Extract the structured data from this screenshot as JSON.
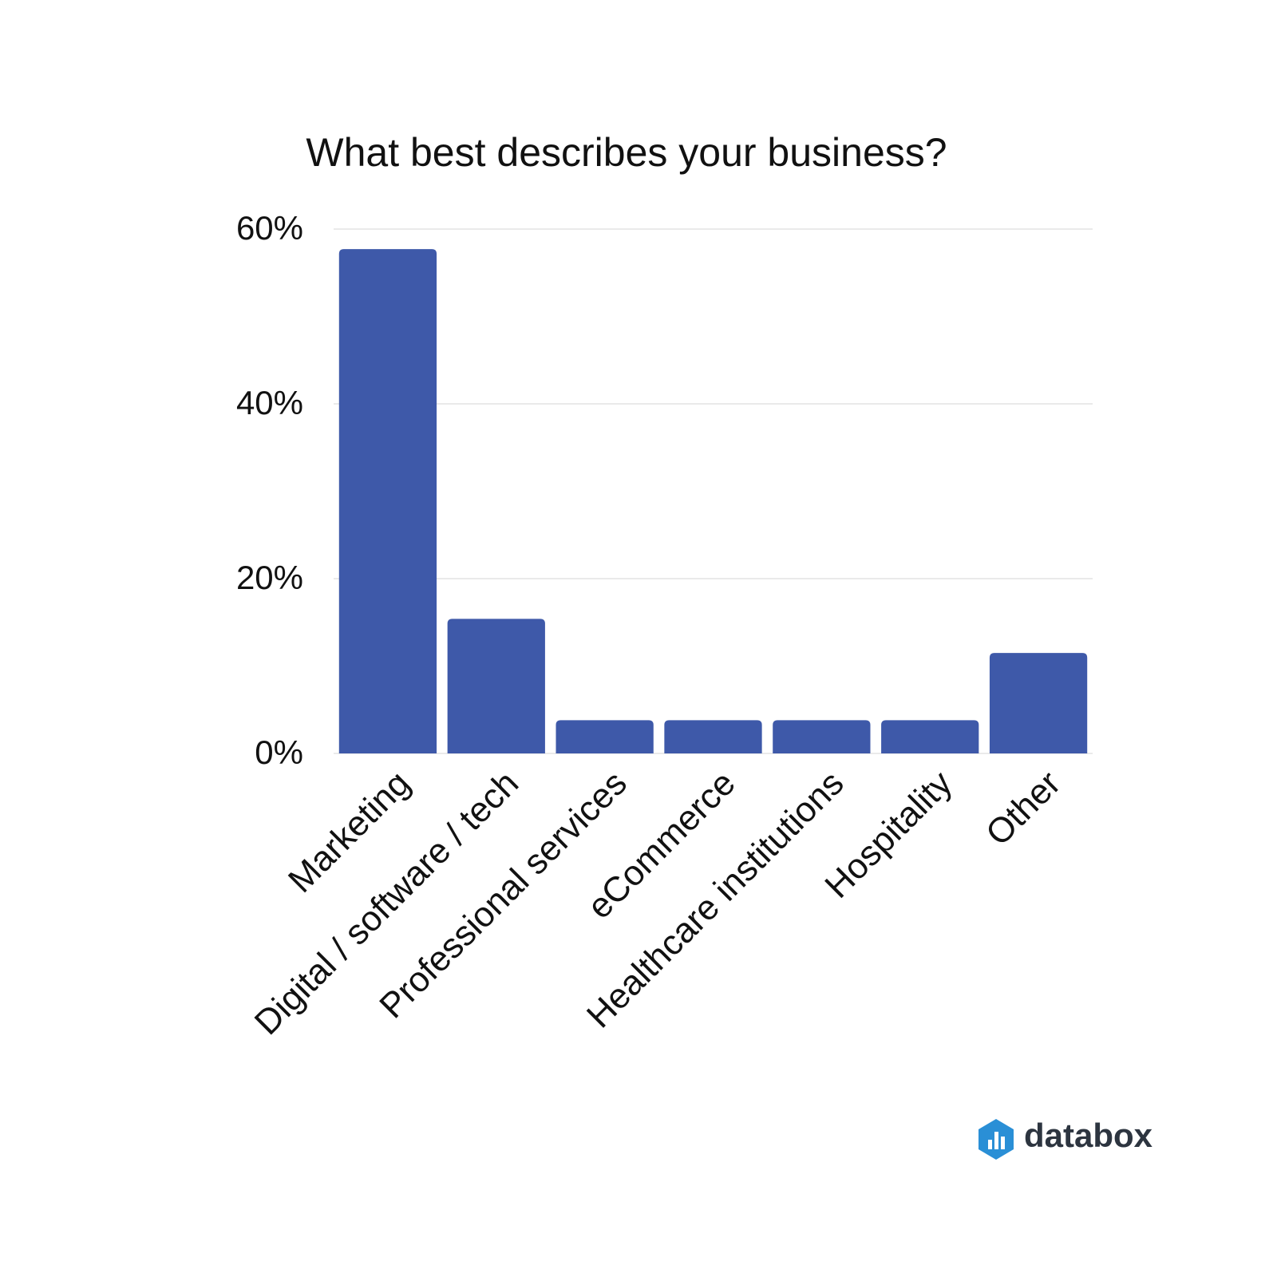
{
  "chart_data": {
    "type": "bar",
    "title": "What best describes your business?",
    "categories": [
      "Marketing",
      "Digital / software / tech",
      "Professional services",
      "eCommerce",
      "Healthcare institutions",
      "Hospitality",
      "Other"
    ],
    "values": [
      57.7,
      15.4,
      3.8,
      3.8,
      3.8,
      3.8,
      11.5
    ],
    "color": "#3e59a9",
    "ylim": [
      0,
      60
    ],
    "yticks": [
      {
        "value": 0,
        "label": "0%"
      },
      {
        "value": 20,
        "label": "20%"
      },
      {
        "value": 40,
        "label": "40%"
      },
      {
        "value": 60,
        "label": "60%"
      }
    ],
    "grid": true
  },
  "branding": {
    "logo_text": "databox"
  }
}
